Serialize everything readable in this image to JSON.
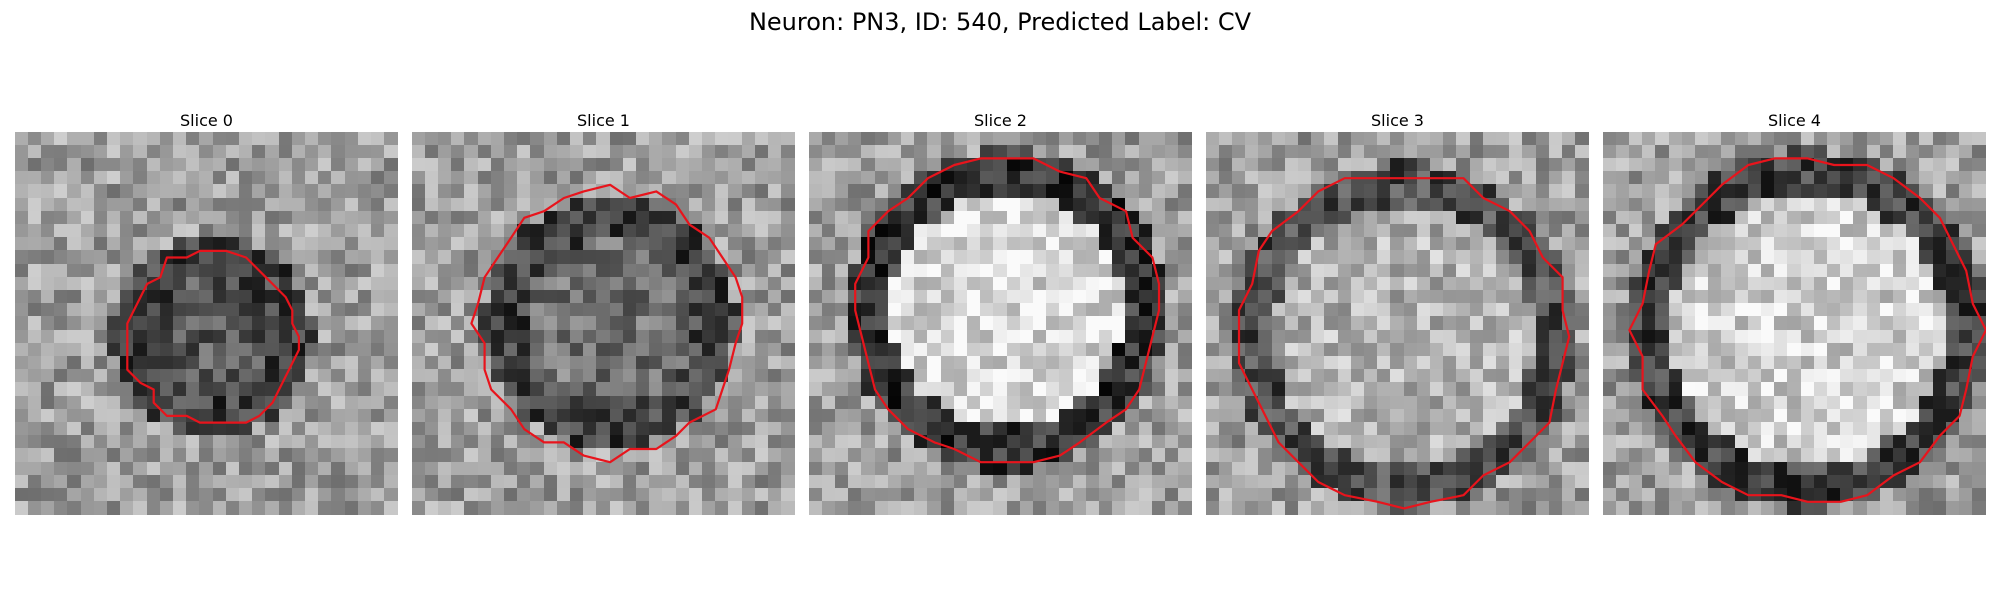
{
  "figure": {
    "title": "Neuron: PN3, ID: 540, Predicted Label: CV"
  },
  "panels": [
    {
      "title": "Slice 0",
      "contour_color": "#e8141c"
    },
    {
      "title": "Slice 1",
      "contour_color": "#e8141c"
    },
    {
      "title": "Slice 2",
      "contour_color": "#e8141c"
    },
    {
      "title": "Slice 3",
      "contour_color": "#e8141c"
    },
    {
      "title": "Slice 4",
      "contour_color": "#e8141c"
    }
  ]
}
